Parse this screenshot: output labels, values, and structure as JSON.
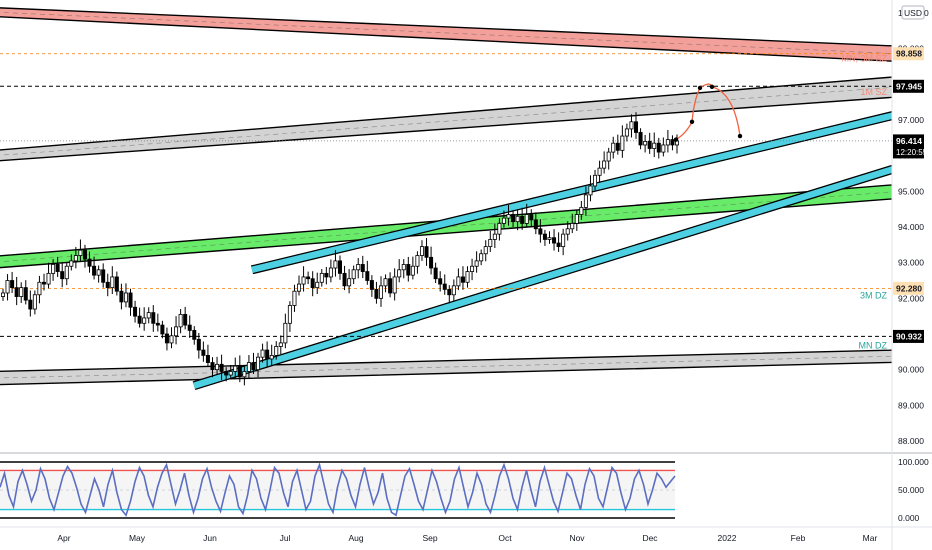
{
  "toolbar": {
    "currency": "USD"
  },
  "chart_data": {
    "type": "candlestick",
    "symbol_currency": "USD",
    "price_axis": {
      "min": 88.0,
      "max": 100.0,
      "ticks": [
        "100.000",
        "99.000",
        "98.000",
        "97.000",
        "96.000",
        "95.000",
        "94.000",
        "93.000",
        "92.000",
        "91.000",
        "90.000",
        "89.000",
        "88.000"
      ]
    },
    "time_axis": [
      "Apr",
      "May",
      "Jun",
      "Jul",
      "Aug",
      "Sep",
      "Oct",
      "Nov",
      "Dec",
      "2022",
      "Feb",
      "Mar"
    ],
    "level_labels": [
      {
        "value": "98.858",
        "price": 98.858,
        "style": "dashed-orange",
        "bg": "#ffe0b2",
        "fg": "#131722"
      },
      {
        "value": "97.945",
        "price": 97.945,
        "style": "dashed-black",
        "bg": "#000000",
        "fg": "#ffffff"
      },
      {
        "value": "96.414",
        "price": 96.414,
        "style": "dotted-gray",
        "bg": "#000000",
        "fg": "#ffffff",
        "sub": "12:20:55"
      },
      {
        "value": "92.280",
        "price": 92.28,
        "style": "dashed-orange",
        "bg": "#ffe0b2",
        "fg": "#131722"
      },
      {
        "value": "90.932",
        "price": 90.932,
        "style": "dashed-black",
        "bg": "#000000",
        "fg": "#ffffff"
      }
    ],
    "zone_labels": [
      {
        "text": "MN, 3M SZ",
        "price": 98.72,
        "color": "#ef8d7a"
      },
      {
        "text": "1M SZ",
        "price": 97.78,
        "color": "#ef8d7a"
      },
      {
        "text": "3M DZ",
        "price": 92.08,
        "color": "#26a69a"
      },
      {
        "text": "MN DZ",
        "price": 90.68,
        "color": "#26a69a"
      }
    ],
    "zones": [
      {
        "name": "red-supply-zone",
        "color": "#f4a09a",
        "from": [
          -5,
          100.15,
          99.9
        ],
        "to": [
          1000,
          98.95,
          98.5
        ]
      },
      {
        "name": "upper-gray-channel",
        "color": "#d3d3d3",
        "from": [
          -5,
          96.15,
          95.85
        ],
        "to": [
          1000,
          98.45,
          97.85
        ]
      },
      {
        "name": "lower-gray-channel",
        "color": "#d3d3d3",
        "from": [
          -5,
          89.95,
          89.58
        ],
        "to": [
          1000,
          90.62,
          90.28
        ]
      },
      {
        "name": "green-demand-zone",
        "color": "#68eb68",
        "from": [
          -5,
          93.18,
          92.85
        ],
        "to": [
          1000,
          95.42,
          95.02
        ]
      }
    ],
    "trendlines": [
      {
        "name": "upper-cyan-trendline",
        "color": "#4dd0e1",
        "from": [
          252,
          92.8
        ],
        "to": [
          1000,
          97.85
        ]
      },
      {
        "name": "lower-cyan-trendline",
        "color": "#4dd0e1",
        "from": [
          194,
          89.55
        ],
        "to": [
          1000,
          96.55
        ]
      }
    ],
    "projection": {
      "color": "#f2613f",
      "points": [
        [
          676,
          96.45
        ],
        [
          692,
          96.95
        ],
        [
          700,
          97.9
        ],
        [
          712,
          97.93
        ],
        [
          740,
          96.55
        ]
      ]
    },
    "ohlc_close": [
      92.15,
      92.5,
      92.3,
      92.05,
      92.3,
      91.95,
      91.7,
      92.1,
      92.45,
      92.4,
      92.7,
      92.95,
      92.75,
      92.55,
      92.9,
      93.05,
      93.2,
      93.35,
      93.1,
      92.9,
      92.65,
      92.8,
      92.45,
      92.3,
      92.6,
      92.2,
      91.9,
      92.15,
      91.75,
      91.5,
      91.3,
      91.45,
      91.6,
      91.3,
      91.25,
      91.0,
      90.75,
      90.95,
      91.2,
      91.55,
      91.25,
      91.1,
      90.85,
      90.55,
      90.4,
      90.2,
      90.0,
      90.15,
      89.95,
      89.85,
      89.95,
      90.1,
      89.8,
      89.95,
      90.2,
      90.0,
      90.35,
      90.55,
      90.3,
      90.4,
      90.65,
      90.75,
      91.3,
      91.8,
      92.2,
      92.4,
      92.6,
      92.55,
      92.3,
      92.45,
      92.7,
      92.6,
      92.85,
      93.05,
      92.7,
      92.35,
      92.55,
      92.8,
      92.95,
      92.75,
      92.5,
      92.25,
      92.0,
      92.35,
      92.55,
      92.15,
      92.6,
      92.8,
      92.95,
      92.65,
      92.9,
      93.2,
      93.45,
      93.15,
      92.85,
      92.55,
      92.4,
      92.25,
      92.1,
      92.35,
      92.6,
      92.45,
      92.75,
      92.9,
      93.05,
      93.25,
      93.45,
      93.65,
      93.8,
      94.1,
      94.25,
      94.35,
      94.15,
      94.3,
      94.1,
      94.35,
      94.2,
      93.95,
      93.8,
      93.65,
      93.7,
      93.55,
      93.45,
      93.8,
      93.95,
      94.1,
      94.35,
      94.55,
      94.9,
      95.15,
      95.45,
      95.65,
      95.85,
      96.1,
      96.35,
      96.15,
      96.55,
      96.75,
      96.95,
      96.65,
      96.3,
      96.4,
      96.2,
      96.35,
      96.1,
      96.3,
      96.45,
      96.3,
      96.414
    ],
    "oscillator": {
      "ticks": [
        "100.000",
        "50.000",
        "0.000"
      ],
      "upper": 85,
      "lower": 15,
      "values": [
        55,
        80,
        40,
        20,
        65,
        85,
        60,
        30,
        50,
        88,
        70,
        35,
        15,
        45,
        75,
        92,
        80,
        55,
        25,
        10,
        40,
        70,
        50,
        20,
        60,
        85,
        45,
        15,
        5,
        30,
        65,
        90,
        75,
        40,
        20,
        55,
        80,
        95,
        60,
        25,
        50,
        80,
        40,
        10,
        35,
        70,
        88,
        55,
        30,
        12,
        45,
        75,
        60,
        20,
        8,
        40,
        85,
        70,
        35,
        15,
        50,
        90,
        80,
        45,
        20,
        65,
        85,
        50,
        15,
        30,
        75,
        95,
        60,
        25,
        10,
        55,
        85,
        70,
        40,
        20,
        60,
        90,
        55,
        25,
        45,
        80,
        35,
        10,
        5,
        40,
        75,
        88,
        60,
        30,
        15,
        50,
        85,
        65,
        35,
        10,
        30,
        70,
        90,
        55,
        20,
        45,
        80,
        60,
        25,
        10,
        40,
        75,
        95,
        70,
        35,
        15,
        55,
        85,
        50,
        20,
        65,
        90,
        60,
        30,
        12,
        45,
        80,
        70,
        40,
        15,
        60,
        88,
        75,
        35,
        20,
        55,
        90,
        80,
        45,
        15,
        35,
        70,
        85,
        60,
        25,
        50,
        80,
        70,
        55,
        65,
        75
      ]
    }
  }
}
